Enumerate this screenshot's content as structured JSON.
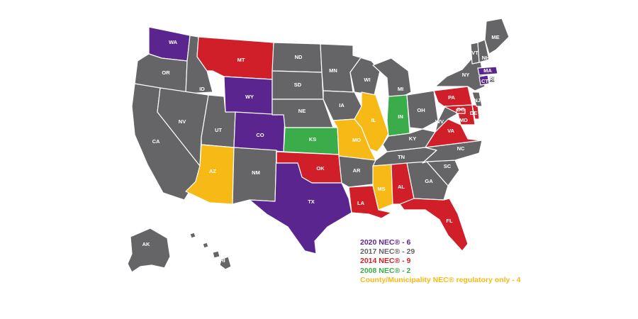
{
  "colors": {
    "nec2020": "#5b2590",
    "nec2017": "#656567",
    "nec2014": "#d11f2a",
    "nec2008": "#3aac4a",
    "county": "#f7b916"
  },
  "states": [
    {
      "code": "WA",
      "label": "WA",
      "status": "nec2020"
    },
    {
      "code": "OR",
      "label": "OR",
      "status": "nec2017"
    },
    {
      "code": "CA",
      "label": "CA",
      "status": "nec2017"
    },
    {
      "code": "ID",
      "label": "ID",
      "status": "nec2017"
    },
    {
      "code": "NV",
      "label": "NV",
      "status": "nec2017"
    },
    {
      "code": "MT",
      "label": "MT",
      "status": "nec2014"
    },
    {
      "code": "WY",
      "label": "WY",
      "status": "nec2020"
    },
    {
      "code": "UT",
      "label": "UT",
      "status": "nec2017"
    },
    {
      "code": "AZ",
      "label": "AZ",
      "status": "county"
    },
    {
      "code": "CO",
      "label": "CO",
      "status": "nec2020"
    },
    {
      "code": "NM",
      "label": "NM",
      "status": "nec2017"
    },
    {
      "code": "ND",
      "label": "ND",
      "status": "nec2017"
    },
    {
      "code": "SD",
      "label": "SD",
      "status": "nec2017"
    },
    {
      "code": "NE",
      "label": "NE",
      "status": "nec2017"
    },
    {
      "code": "KS",
      "label": "KS",
      "status": "nec2008"
    },
    {
      "code": "OK",
      "label": "OK",
      "status": "nec2014"
    },
    {
      "code": "TX",
      "label": "TX",
      "status": "nec2020"
    },
    {
      "code": "MN",
      "label": "MN",
      "status": "nec2017"
    },
    {
      "code": "IA",
      "label": "IA",
      "status": "nec2017"
    },
    {
      "code": "MO",
      "label": "MO",
      "status": "county"
    },
    {
      "code": "AR",
      "label": "AR",
      "status": "nec2017"
    },
    {
      "code": "LA",
      "label": "LA",
      "status": "nec2014"
    },
    {
      "code": "WI",
      "label": "WI",
      "status": "nec2017"
    },
    {
      "code": "IL",
      "label": "IL",
      "status": "county"
    },
    {
      "code": "MI",
      "label": "MI",
      "status": "nec2017"
    },
    {
      "code": "IN",
      "label": "IN",
      "status": "nec2008"
    },
    {
      "code": "OH",
      "label": "OH",
      "status": "nec2017"
    },
    {
      "code": "KY",
      "label": "KY",
      "status": "nec2017"
    },
    {
      "code": "TN",
      "label": "TN",
      "status": "nec2017"
    },
    {
      "code": "MS",
      "label": "MS",
      "status": "county"
    },
    {
      "code": "AL",
      "label": "AL",
      "status": "nec2014"
    },
    {
      "code": "GA",
      "label": "GA",
      "status": "nec2017"
    },
    {
      "code": "FL",
      "label": "FL",
      "status": "nec2014"
    },
    {
      "code": "SC",
      "label": "SC",
      "status": "nec2017"
    },
    {
      "code": "NC",
      "label": "NC",
      "status": "nec2017"
    },
    {
      "code": "VA",
      "label": "VA",
      "status": "nec2014"
    },
    {
      "code": "WV",
      "label": "WV",
      "status": "nec2017"
    },
    {
      "code": "PA",
      "label": "PA",
      "status": "nec2014"
    },
    {
      "code": "NY",
      "label": "NY",
      "status": "nec2017"
    },
    {
      "code": "MD",
      "label": "MD",
      "status": "nec2014"
    },
    {
      "code": "DE",
      "label": "DE",
      "status": "nec2014"
    },
    {
      "code": "DC",
      "label": "DC",
      "status": "nec2014"
    },
    {
      "code": "NJ",
      "label": "NJ",
      "status": "nec2017"
    },
    {
      "code": "CT",
      "label": "CT",
      "status": "nec2020"
    },
    {
      "code": "MA",
      "label": "MA",
      "status": "nec2020"
    },
    {
      "code": "VT",
      "label": "VT",
      "status": "nec2017"
    },
    {
      "code": "NH",
      "label": "NH",
      "status": "nec2017"
    },
    {
      "code": "ME",
      "label": "ME",
      "status": "nec2017"
    },
    {
      "code": "RI",
      "label": "RI",
      "status": "nec2017"
    },
    {
      "code": "AK",
      "label": "AK",
      "status": "nec2017"
    },
    {
      "code": "HI",
      "label": "HI",
      "status": "nec2017"
    }
  ],
  "legend": [
    {
      "text": "2020 NEC® - 6",
      "status": "nec2020"
    },
    {
      "text": "2017 NEC® - 29",
      "status": "nec2017"
    },
    {
      "text": "2014 NEC® - 9",
      "status": "nec2014"
    },
    {
      "text": "2008 NEC® - 2",
      "status": "nec2008"
    },
    {
      "text": "County/Municipality NEC® regulatory only - 4",
      "status": "county"
    }
  ]
}
